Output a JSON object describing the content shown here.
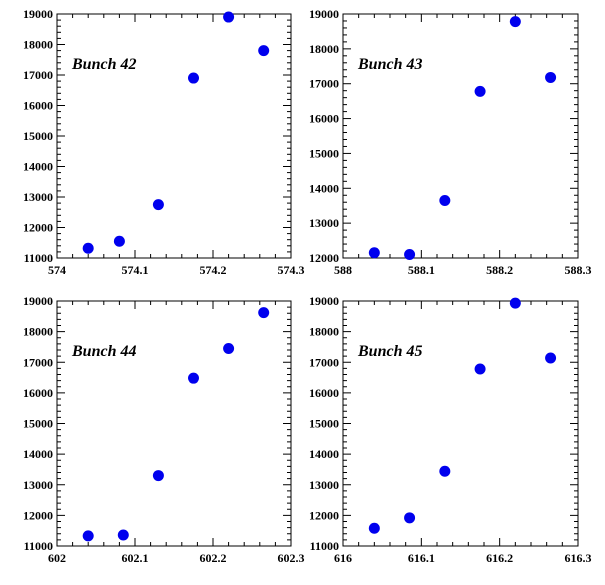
{
  "chart_data": [
    {
      "type": "scatter",
      "title": "Bunch 42",
      "x": [
        574.04,
        574.08,
        574.13,
        574.175,
        574.22,
        574.265
      ],
      "y": [
        11320,
        11550,
        12750,
        16900,
        18900,
        17800
      ],
      "xlim": [
        574,
        574.3
      ],
      "ylim": [
        11000,
        19000
      ],
      "xticks": [
        "574",
        "574.1",
        "574.2",
        "574.3"
      ],
      "yticks": [
        "11000",
        "12000",
        "13000",
        "14000",
        "15000",
        "16000",
        "17000",
        "18000",
        "19000"
      ],
      "marker_color": "#0000ee"
    },
    {
      "type": "scatter",
      "title": "Bunch 43",
      "x": [
        588.04,
        588.085,
        588.13,
        588.175,
        588.22,
        588.265
      ],
      "y": [
        12150,
        12100,
        13650,
        16780,
        18780,
        17180
      ],
      "xlim": [
        588,
        588.3
      ],
      "ylim": [
        12000,
        19000
      ],
      "xticks": [
        "588",
        "588.1",
        "588.2",
        "588.3"
      ],
      "yticks": [
        "12000",
        "13000",
        "14000",
        "15000",
        "16000",
        "17000",
        "18000",
        "19000"
      ],
      "marker_color": "#0000ee"
    },
    {
      "type": "scatter",
      "title": "Bunch 44",
      "x": [
        602.04,
        602.085,
        602.13,
        602.175,
        602.22,
        602.265
      ],
      "y": [
        11330,
        11360,
        13300,
        16480,
        17450,
        18620
      ],
      "xlim": [
        602,
        602.3
      ],
      "ylim": [
        11000,
        19000
      ],
      "xticks": [
        "602",
        "602.1",
        "602.2",
        "602.3"
      ],
      "yticks": [
        "11000",
        "12000",
        "13000",
        "14000",
        "15000",
        "16000",
        "17000",
        "18000",
        "19000"
      ],
      "marker_color": "#0000ee"
    },
    {
      "type": "scatter",
      "title": "Bunch 45",
      "x": [
        616.04,
        616.085,
        616.13,
        616.175,
        616.22,
        616.265
      ],
      "y": [
        11580,
        11920,
        13440,
        16780,
        18930,
        17140
      ],
      "xlim": [
        616,
        616.3
      ],
      "ylim": [
        11000,
        19000
      ],
      "xticks": [
        "616",
        "616.1",
        "616.2",
        "616.3"
      ],
      "yticks": [
        "11000",
        "12000",
        "13000",
        "14000",
        "15000",
        "16000",
        "17000",
        "18000",
        "19000"
      ],
      "marker_color": "#0000ee"
    }
  ]
}
